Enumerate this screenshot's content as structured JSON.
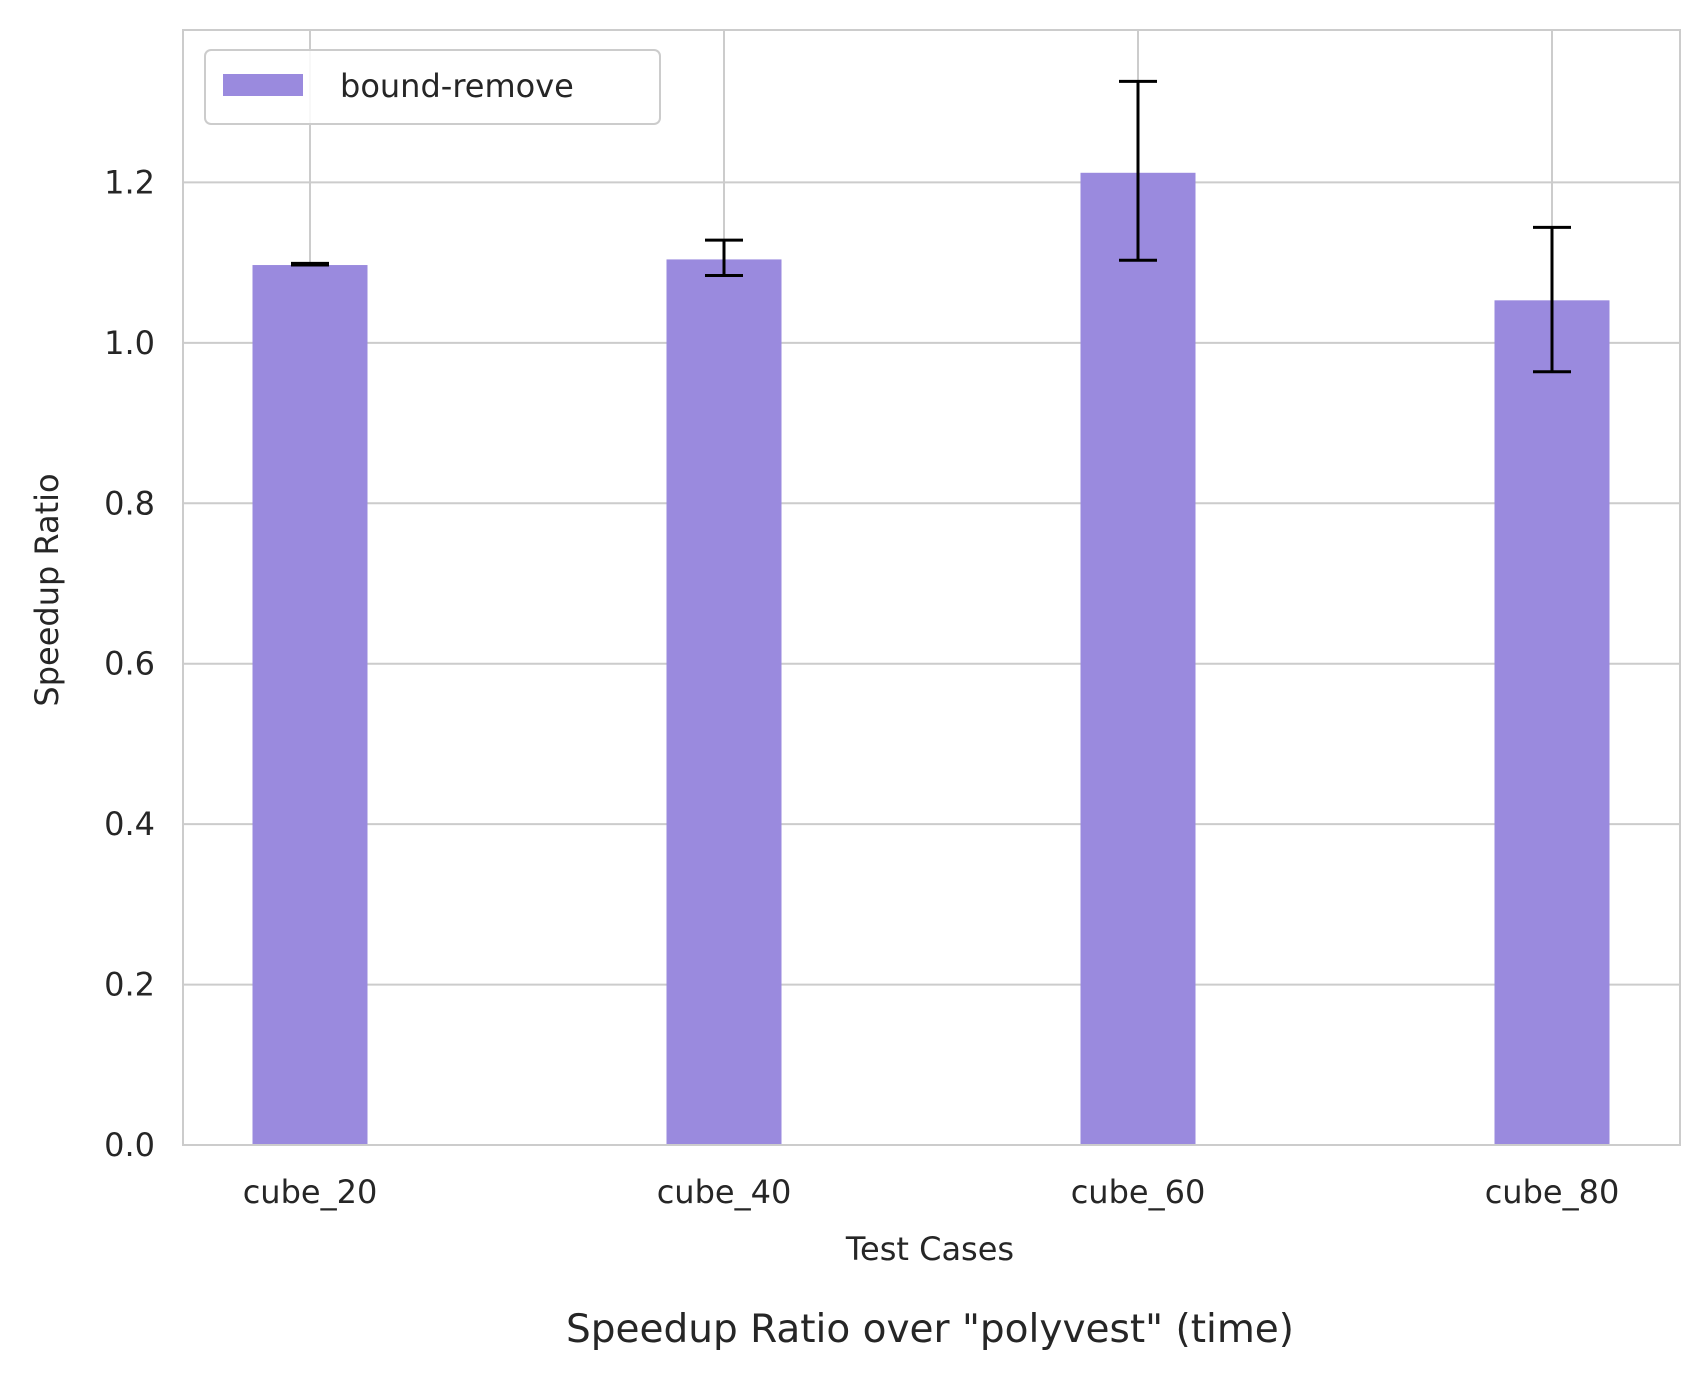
{
  "chart_data": {
    "type": "bar",
    "title": "Speedup Ratio over \"polyvest\" (time)",
    "xlabel": "Test Cases",
    "ylabel": "Speedup Ratio",
    "categories": [
      "cube_20",
      "cube_40",
      "cube_60",
      "cube_80"
    ],
    "series": [
      {
        "name": "bound-remove",
        "values": [
          1.097,
          1.104,
          1.212,
          1.053
        ],
        "error_low": [
          1.097,
          1.084,
          1.103,
          0.964
        ],
        "error_high": [
          1.099,
          1.128,
          1.326,
          1.144
        ],
        "color": "#9a8ade"
      }
    ],
    "ylim": [
      0,
      1.39
    ],
    "yticks": [
      "0.0",
      "0.2",
      "0.4",
      "0.6",
      "0.8",
      "1.0",
      "1.2"
    ],
    "ytick_values": [
      0,
      0.2,
      0.4,
      0.6,
      0.8,
      1.0,
      1.2
    ],
    "grid": true,
    "legend_position": "top-left",
    "colors": {
      "grid": "#cccccc",
      "frame": "#cccccc",
      "errorbar": "#000000",
      "text": "#262626"
    }
  }
}
